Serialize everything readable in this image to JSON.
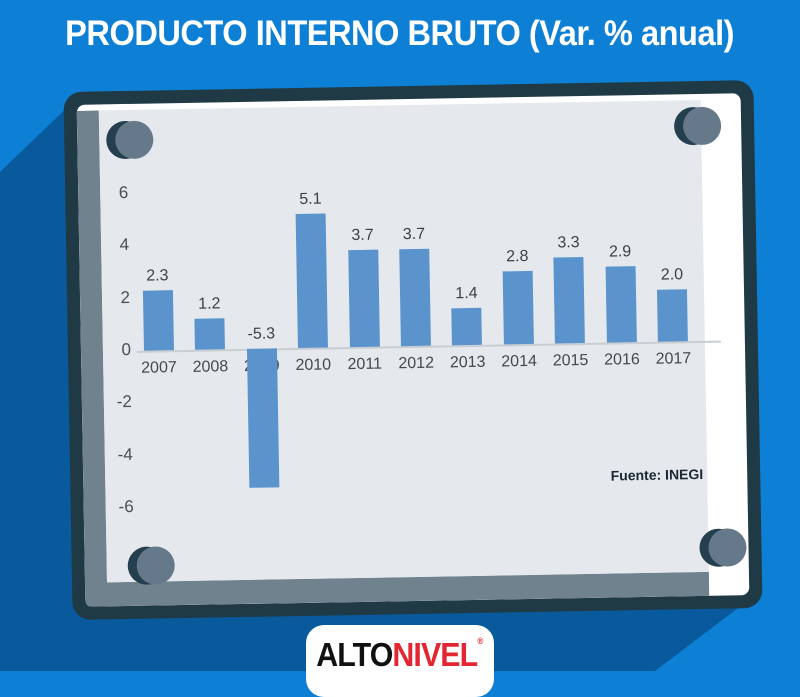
{
  "title": "PRODUCTO INTERNO BRUTO (Var. % anual)",
  "source_label": "Fuente: INEGI",
  "footer": {
    "brand_black": "ALTO",
    "brand_red": "NIVEL",
    "reg_mark": "®"
  },
  "colors": {
    "background_blue": "#0d80d6",
    "shadow_blue": "#085a9c",
    "frame_navy": "#203a45",
    "bevel_gray": "#71828f",
    "surface_gray": "#e5e9ed",
    "bar_blue": "#5b94cd",
    "brand_red": "#e22632"
  },
  "chart_data": {
    "type": "bar",
    "title": "PRODUCTO INTERNO BRUTO (Var. % anual)",
    "categories": [
      "2007",
      "2008",
      "2009",
      "2010",
      "2011",
      "2012",
      "2013",
      "2014",
      "2015",
      "2016",
      "2017"
    ],
    "values": [
      2.3,
      1.2,
      -5.3,
      5.1,
      3.7,
      3.7,
      1.4,
      2.8,
      3.3,
      2.9,
      2.0
    ],
    "xlabel": "",
    "ylabel": "",
    "ylim": [
      -6,
      6
    ],
    "yticks": [
      6,
      4,
      2,
      0,
      -2,
      -4,
      -6
    ],
    "grid": false,
    "legend": false,
    "data_labels": true,
    "source": "Fuente: INEGI",
    "bar_color": "#5b94cd"
  }
}
